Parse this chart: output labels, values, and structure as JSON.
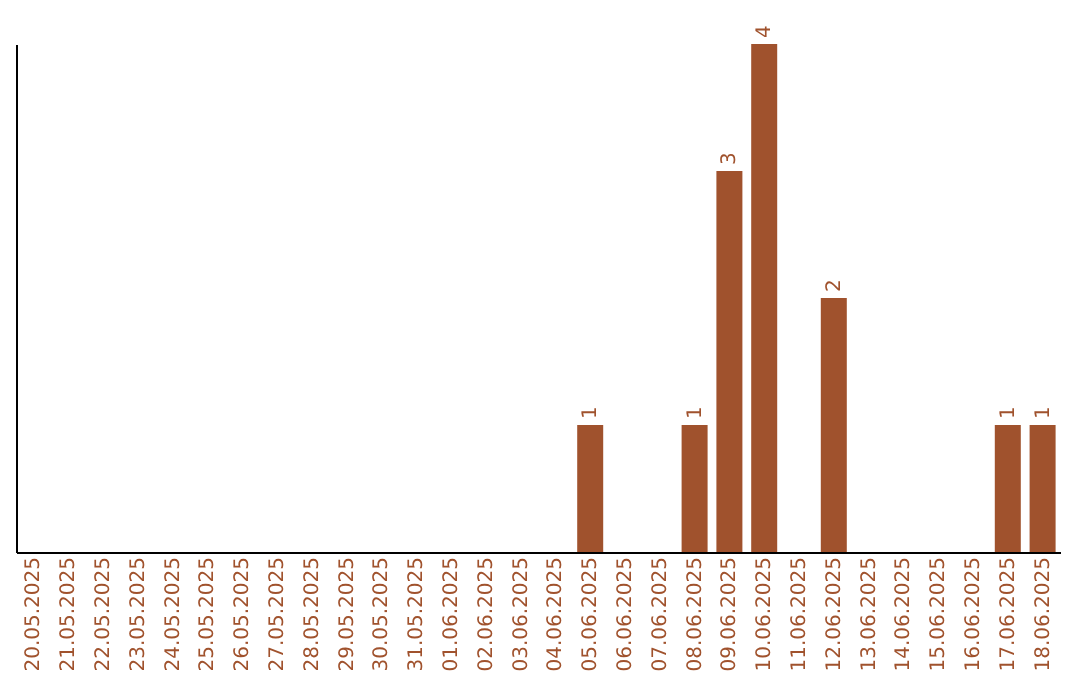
{
  "chart_data": {
    "type": "bar",
    "categories": [
      "20.05.2025",
      "21.05.2025",
      "22.05.2025",
      "23.05.2025",
      "24.05.2025",
      "25.05.2025",
      "26.05.2025",
      "27.05.2025",
      "28.05.2025",
      "29.05.2025",
      "30.05.2025",
      "31.05.2025",
      "01.06.2025",
      "02.06.2025",
      "03.06.2025",
      "04.06.2025",
      "05.06.2025",
      "06.06.2025",
      "07.06.2025",
      "08.06.2025",
      "09.06.2025",
      "10.06.2025",
      "11.06.2025",
      "12.06.2025",
      "13.06.2025",
      "14.06.2025",
      "15.06.2025",
      "16.06.2025",
      "17.06.2025",
      "18.06.2025"
    ],
    "values": [
      null,
      null,
      null,
      null,
      null,
      null,
      null,
      null,
      null,
      null,
      null,
      null,
      null,
      null,
      null,
      null,
      1,
      null,
      null,
      1,
      3,
      4,
      null,
      2,
      null,
      null,
      null,
      null,
      1,
      1
    ],
    "value_labels": [
      null,
      null,
      null,
      null,
      null,
      null,
      null,
      null,
      null,
      null,
      null,
      null,
      null,
      null,
      null,
      null,
      "1",
      null,
      null,
      "1",
      "3",
      "4",
      null,
      "2",
      null,
      null,
      null,
      null,
      "1",
      "1"
    ],
    "color": "#a0522d",
    "tick_labels": "x",
    "grid": false
  }
}
